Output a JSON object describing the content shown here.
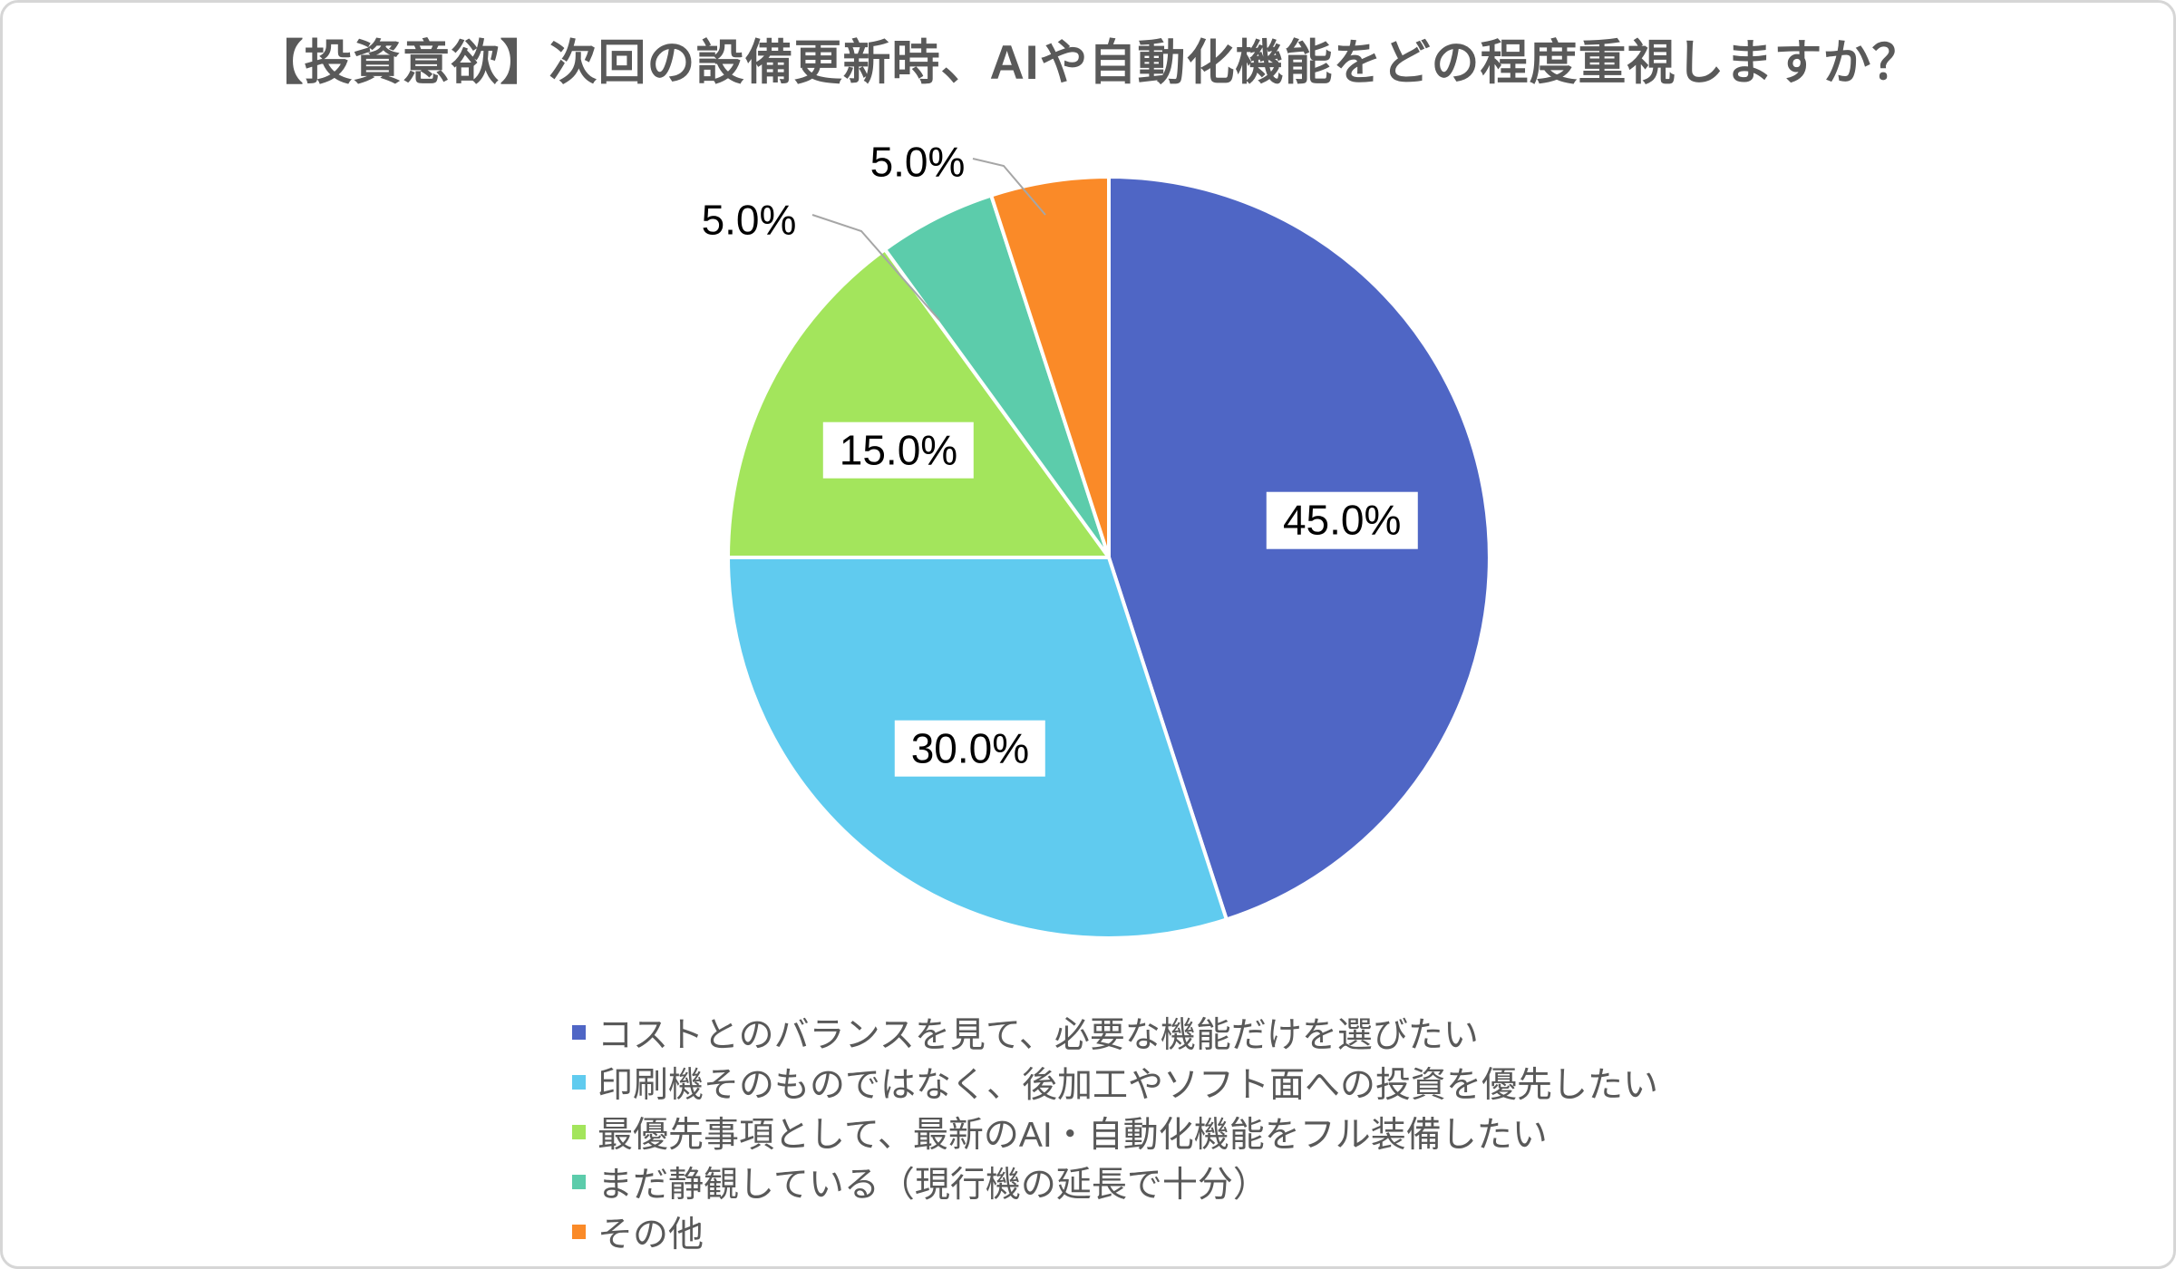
{
  "page": {
    "background": "#ffffff",
    "border_color": "#d6d6d6"
  },
  "chart_data": {
    "type": "pie",
    "title": "【投資意欲】次回の設備更新時、AIや自動化機能をどの程度重視しますか？",
    "title_color": "#595959",
    "start_angle_deg": 0,
    "direction": "clockwise",
    "legend_position": "bottom-left-aligned",
    "label_text_color": "#000000",
    "leader_line_color": "#a6a6a6",
    "slices": [
      {
        "label": "コストとのバランスを見て、必要な機能だけを選びたい",
        "value": 45.0,
        "display": "45.0%",
        "color": "#4f66c5",
        "label_placement": "inside"
      },
      {
        "label": "印刷機そのものではなく、後加工やソフト面への投資を優先したい",
        "value": 30.0,
        "display": "30.0%",
        "color": "#60cbef",
        "label_placement": "inside"
      },
      {
        "label": "最優先事項として、最新のAI・自動化機能をフル装備したい",
        "value": 15.0,
        "display": "15.0%",
        "color": "#a3e55c",
        "label_placement": "inside"
      },
      {
        "label": "まだ静観している（現行機の延長で十分）",
        "value": 5.0,
        "display": "5.0%",
        "color": "#5cccab",
        "label_placement": "outside"
      },
      {
        "label": "その他",
        "value": 5.0,
        "display": "5.0%",
        "color": "#fa8a28",
        "label_placement": "outside"
      }
    ]
  }
}
